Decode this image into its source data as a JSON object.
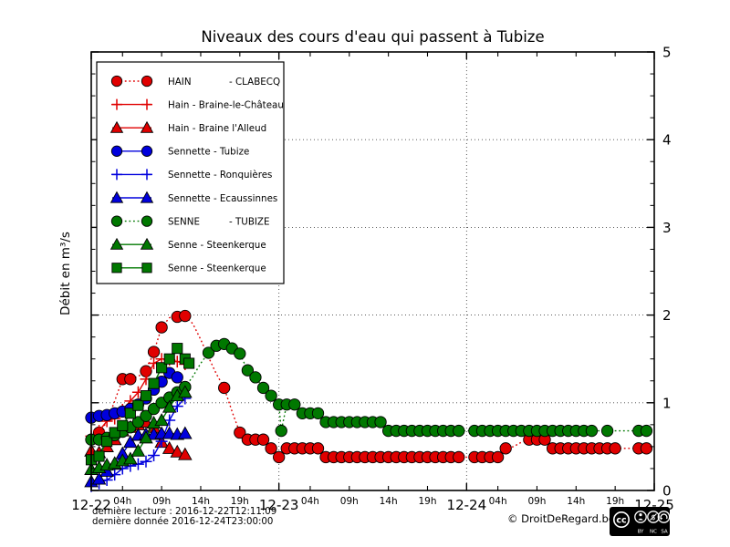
{
  "title": "Niveaux des cours d'eau qui passent à Tubize",
  "ylabel": "Débit en m³/s",
  "footer": {
    "line1": "dernière lecture : 2016-12-22T12:11:09",
    "line2": "dernière donnée  2016-12-24T23:00:00",
    "copyright": "© DroitDeRegard.be",
    "license": "CC BY NC SA",
    "cc_badge_labels": [
      "BY",
      "NC",
      "SA"
    ],
    "cc_badge_logo": "cc"
  },
  "chart_data": {
    "type": "line",
    "title": "Niveaux des cours d'eau qui passent à Tubize",
    "xlabel": "",
    "ylabel": "Débit en m³/s",
    "x_unit": "hours since 2016-12-22 00:00",
    "xlim_hours": [
      0,
      72
    ],
    "ylim": [
      0,
      5
    ],
    "grid": {
      "style": "dotted",
      "horizontal_at": [
        1,
        2,
        3,
        4
      ],
      "vertical_at_hours": [
        24,
        48
      ]
    },
    "legend_position": "upper-left",
    "y_major_ticks": [
      0,
      1,
      2,
      3,
      4,
      5
    ],
    "y_minor_step": 0.25,
    "y_tick_side": "right",
    "x_major_ticks": [
      {
        "hour": 0,
        "label": "12-22"
      },
      {
        "hour": 24,
        "label": "12-23"
      },
      {
        "hour": 48,
        "label": "12-24"
      },
      {
        "hour": 72,
        "label": "12-25"
      }
    ],
    "x_minor_ticks": [
      {
        "hour": 4,
        "label": "04h"
      },
      {
        "hour": 9,
        "label": "09h"
      },
      {
        "hour": 14,
        "label": "14h"
      },
      {
        "hour": 19,
        "label": "19h"
      },
      {
        "hour": 28,
        "label": "04h"
      },
      {
        "hour": 33,
        "label": "09h"
      },
      {
        "hour": 38,
        "label": "14h"
      },
      {
        "hour": 43,
        "label": "19h"
      },
      {
        "hour": 52,
        "label": "04h"
      },
      {
        "hour": 57,
        "label": "09h"
      },
      {
        "hour": 62,
        "label": "14h"
      },
      {
        "hour": 67,
        "label": "19h"
      }
    ],
    "series": [
      {
        "id": "hain-clabecq",
        "label": "HAIN",
        "label_right": "- CLABECQ",
        "color": "#e00000",
        "marker": "circle",
        "line_style": "dotted",
        "points": [
          [
            0,
            0.55,
            0
          ],
          [
            1,
            0.66
          ],
          [
            2,
            0.78,
            0
          ],
          [
            3,
            1.02,
            0
          ],
          [
            4,
            1.27
          ],
          [
            5,
            1.27
          ],
          [
            6,
            1.3,
            0
          ],
          [
            7,
            1.36
          ],
          [
            8,
            1.58
          ],
          [
            9,
            1.86
          ],
          [
            10,
            1.97,
            0
          ],
          [
            11,
            1.98
          ],
          [
            12,
            1.99
          ],
          [
            13,
            1.9,
            0
          ],
          [
            14,
            1.72,
            0
          ],
          [
            15,
            1.52,
            0
          ],
          [
            16,
            1.33,
            0
          ],
          [
            17,
            1.17
          ],
          [
            18,
            0.9,
            0
          ],
          [
            19,
            0.66
          ],
          [
            20,
            0.58
          ],
          [
            21,
            0.58
          ],
          [
            22,
            0.58
          ],
          [
            23,
            0.48
          ],
          [
            24,
            0.38
          ],
          [
            25,
            0.48
          ],
          [
            26,
            0.48
          ],
          [
            27,
            0.48
          ],
          [
            28,
            0.48
          ],
          [
            29,
            0.48
          ],
          [
            30,
            0.38
          ],
          [
            31,
            0.38
          ],
          [
            32,
            0.38
          ],
          [
            33,
            0.38
          ],
          [
            34,
            0.38
          ],
          [
            35,
            0.38
          ],
          [
            36,
            0.38
          ],
          [
            37,
            0.38
          ],
          [
            38,
            0.38
          ],
          [
            39,
            0.38
          ],
          [
            40,
            0.38
          ],
          [
            41,
            0.38
          ],
          [
            42,
            0.38
          ],
          [
            43,
            0.38
          ],
          [
            44,
            0.38
          ],
          [
            45,
            0.38
          ],
          [
            46,
            0.38
          ],
          [
            47,
            0.38
          ],
          [
            48,
            0.38,
            0
          ],
          [
            49,
            0.38
          ],
          [
            50,
            0.38
          ],
          [
            51,
            0.38
          ],
          [
            52,
            0.38
          ],
          [
            53,
            0.48
          ],
          [
            54,
            0.5,
            0
          ],
          [
            55,
            0.55,
            0
          ],
          [
            56,
            0.58
          ],
          [
            57,
            0.58
          ],
          [
            58,
            0.58
          ],
          [
            59,
            0.48
          ],
          [
            60,
            0.48
          ],
          [
            61,
            0.48
          ],
          [
            62,
            0.48
          ],
          [
            63,
            0.48
          ],
          [
            64,
            0.48
          ],
          [
            65,
            0.48
          ],
          [
            66,
            0.48
          ],
          [
            67,
            0.48
          ],
          [
            68,
            0.48,
            0
          ],
          [
            69,
            0.48,
            0
          ],
          [
            70,
            0.48
          ],
          [
            71,
            0.48
          ]
        ]
      },
      {
        "id": "hain-braine-le-chateau",
        "label": "Hain - Braine-le-Château",
        "color": "#e00000",
        "marker": "plus",
        "line_style": "solid",
        "points": [
          [
            0,
            0.62
          ],
          [
            1,
            0.68
          ],
          [
            2,
            0.79
          ],
          [
            3,
            0.82
          ],
          [
            4,
            0.92
          ],
          [
            5,
            1.02
          ],
          [
            6,
            1.12
          ],
          [
            7,
            1.27
          ],
          [
            8,
            1.45
          ],
          [
            9,
            1.5
          ],
          [
            10,
            1.49
          ],
          [
            11,
            1.47
          ],
          [
            12,
            1.44
          ]
        ]
      },
      {
        "id": "hain-braine-l-alleud",
        "label": "Hain - Braine l'Alleud",
        "color": "#e00000",
        "marker": "triangle",
        "line_style": "solid",
        "points": [
          [
            0,
            0.45
          ],
          [
            1,
            0.43
          ],
          [
            2,
            0.5
          ],
          [
            3,
            0.58
          ],
          [
            4,
            0.68
          ],
          [
            5,
            0.72
          ],
          [
            6,
            0.75
          ],
          [
            7,
            0.78
          ],
          [
            8,
            0.72
          ],
          [
            9,
            0.55
          ],
          [
            10,
            0.48
          ],
          [
            11,
            0.44
          ],
          [
            12,
            0.41
          ]
        ]
      },
      {
        "id": "sennette-tubize",
        "label": "Sennette - Tubize",
        "color": "#0000dd",
        "marker": "circle",
        "line_style": "solid",
        "points": [
          [
            0,
            0.83
          ],
          [
            1,
            0.85
          ],
          [
            2,
            0.86
          ],
          [
            3,
            0.88
          ],
          [
            4,
            0.9
          ],
          [
            5,
            0.93
          ],
          [
            6,
            0.98
          ],
          [
            7,
            1.05
          ],
          [
            8,
            1.15
          ],
          [
            9,
            1.24
          ],
          [
            10,
            1.34
          ],
          [
            11,
            1.29
          ],
          [
            12,
            1.18
          ]
        ]
      },
      {
        "id": "sennette-ronquieres",
        "label": "Sennette - Ronquières",
        "color": "#0000dd",
        "marker": "plus",
        "line_style": "solid",
        "points": [
          [
            0,
            0.05
          ],
          [
            1,
            0.08
          ],
          [
            2,
            0.12
          ],
          [
            3,
            0.18
          ],
          [
            4,
            0.25
          ],
          [
            5,
            0.28
          ],
          [
            6,
            0.3
          ],
          [
            7,
            0.33
          ],
          [
            8,
            0.4
          ],
          [
            9,
            0.56
          ],
          [
            10,
            0.8
          ],
          [
            11,
            0.96
          ],
          [
            12,
            1.05
          ]
        ]
      },
      {
        "id": "sennette-ecaussinnes",
        "label": "Sennette - Ecaussinnes",
        "color": "#0000dd",
        "marker": "triangle",
        "line_style": "solid",
        "points": [
          [
            0,
            0.1
          ],
          [
            1,
            0.13
          ],
          [
            2,
            0.22
          ],
          [
            3,
            0.3
          ],
          [
            4,
            0.42
          ],
          [
            5,
            0.55
          ],
          [
            6,
            0.63
          ],
          [
            7,
            0.64
          ],
          [
            8,
            0.64
          ],
          [
            9,
            0.65
          ],
          [
            10,
            0.65
          ],
          [
            11,
            0.64
          ],
          [
            12,
            0.65
          ]
        ]
      },
      {
        "id": "senne-tubize",
        "label": "SENNE",
        "label_right": "- TUBIZE",
        "color": "#007800",
        "marker": "circle",
        "line_style": "dotted",
        "points": [
          [
            0,
            0.58
          ],
          [
            1,
            0.58
          ],
          [
            2,
            0.6
          ],
          [
            3,
            0.63
          ],
          [
            4,
            0.67
          ],
          [
            5,
            0.72
          ],
          [
            6,
            0.78
          ],
          [
            7,
            0.85
          ],
          [
            8,
            0.93
          ],
          [
            9,
            1.0
          ],
          [
            10,
            1.06
          ],
          [
            11,
            1.12
          ],
          [
            12,
            1.18
          ],
          [
            13,
            1.3,
            0
          ],
          [
            14,
            1.45,
            0
          ],
          [
            15,
            1.57
          ],
          [
            16,
            1.65
          ],
          [
            17,
            1.67
          ],
          [
            18,
            1.62
          ],
          [
            19,
            1.56
          ],
          [
            20,
            1.37
          ],
          [
            21,
            1.29
          ],
          [
            22,
            1.17
          ],
          [
            23,
            1.08
          ],
          [
            24,
            0.98
          ],
          [
            24.3,
            0.68
          ],
          [
            25,
            0.98
          ],
          [
            26,
            0.98
          ],
          [
            27,
            0.88
          ],
          [
            28,
            0.88
          ],
          [
            29,
            0.88
          ],
          [
            30,
            0.78
          ],
          [
            31,
            0.78
          ],
          [
            32,
            0.78
          ],
          [
            33,
            0.78
          ],
          [
            34,
            0.78
          ],
          [
            35,
            0.78
          ],
          [
            36,
            0.78
          ],
          [
            37,
            0.78
          ],
          [
            38,
            0.68
          ],
          [
            39,
            0.68
          ],
          [
            40,
            0.68
          ],
          [
            41,
            0.68
          ],
          [
            42,
            0.68
          ],
          [
            43,
            0.68
          ],
          [
            44,
            0.68
          ],
          [
            45,
            0.68
          ],
          [
            46,
            0.68
          ],
          [
            47,
            0.68
          ],
          [
            48,
            0.68,
            0
          ],
          [
            49,
            0.68
          ],
          [
            50,
            0.68
          ],
          [
            51,
            0.68
          ],
          [
            52,
            0.68
          ],
          [
            53,
            0.68
          ],
          [
            54,
            0.68
          ],
          [
            55,
            0.68
          ],
          [
            56,
            0.68
          ],
          [
            57,
            0.68
          ],
          [
            58,
            0.68
          ],
          [
            59,
            0.68
          ],
          [
            60,
            0.68
          ],
          [
            61,
            0.68
          ],
          [
            62,
            0.68
          ],
          [
            63,
            0.68
          ],
          [
            64,
            0.68
          ],
          [
            65,
            0.68,
            0
          ],
          [
            66,
            0.68
          ],
          [
            67,
            0.68,
            0
          ],
          [
            68,
            0.68,
            0
          ],
          [
            69,
            0.68,
            0
          ],
          [
            70,
            0.68
          ],
          [
            71,
            0.68
          ]
        ]
      },
      {
        "id": "senne-steenkerque-a",
        "label": "Senne - Steenkerque",
        "color": "#007800",
        "marker": "triangle",
        "line_style": "solid",
        "points": [
          [
            0,
            0.24
          ],
          [
            1,
            0.26
          ],
          [
            2,
            0.29
          ],
          [
            3,
            0.31
          ],
          [
            4,
            0.34
          ],
          [
            5,
            0.36
          ],
          [
            6,
            0.45
          ],
          [
            7,
            0.6
          ],
          [
            8,
            0.77
          ],
          [
            9,
            0.8
          ],
          [
            10,
            0.95
          ],
          [
            11,
            1.08
          ],
          [
            12,
            1.12
          ]
        ]
      },
      {
        "id": "senne-steenkerque-b",
        "label": "Senne - Steenkerque",
        "color": "#007800",
        "marker": "square",
        "line_style": "solid",
        "points": [
          [
            0,
            0.35
          ],
          [
            1,
            0.39
          ],
          [
            2,
            0.56
          ],
          [
            3,
            0.66
          ],
          [
            4,
            0.74
          ],
          [
            5,
            0.88
          ],
          [
            6,
            0.97
          ],
          [
            7,
            1.08
          ],
          [
            8,
            1.22
          ],
          [
            9,
            1.4
          ],
          [
            10,
            1.5
          ],
          [
            11,
            1.62
          ],
          [
            12,
            1.5
          ],
          [
            12.5,
            1.45
          ]
        ]
      }
    ]
  }
}
